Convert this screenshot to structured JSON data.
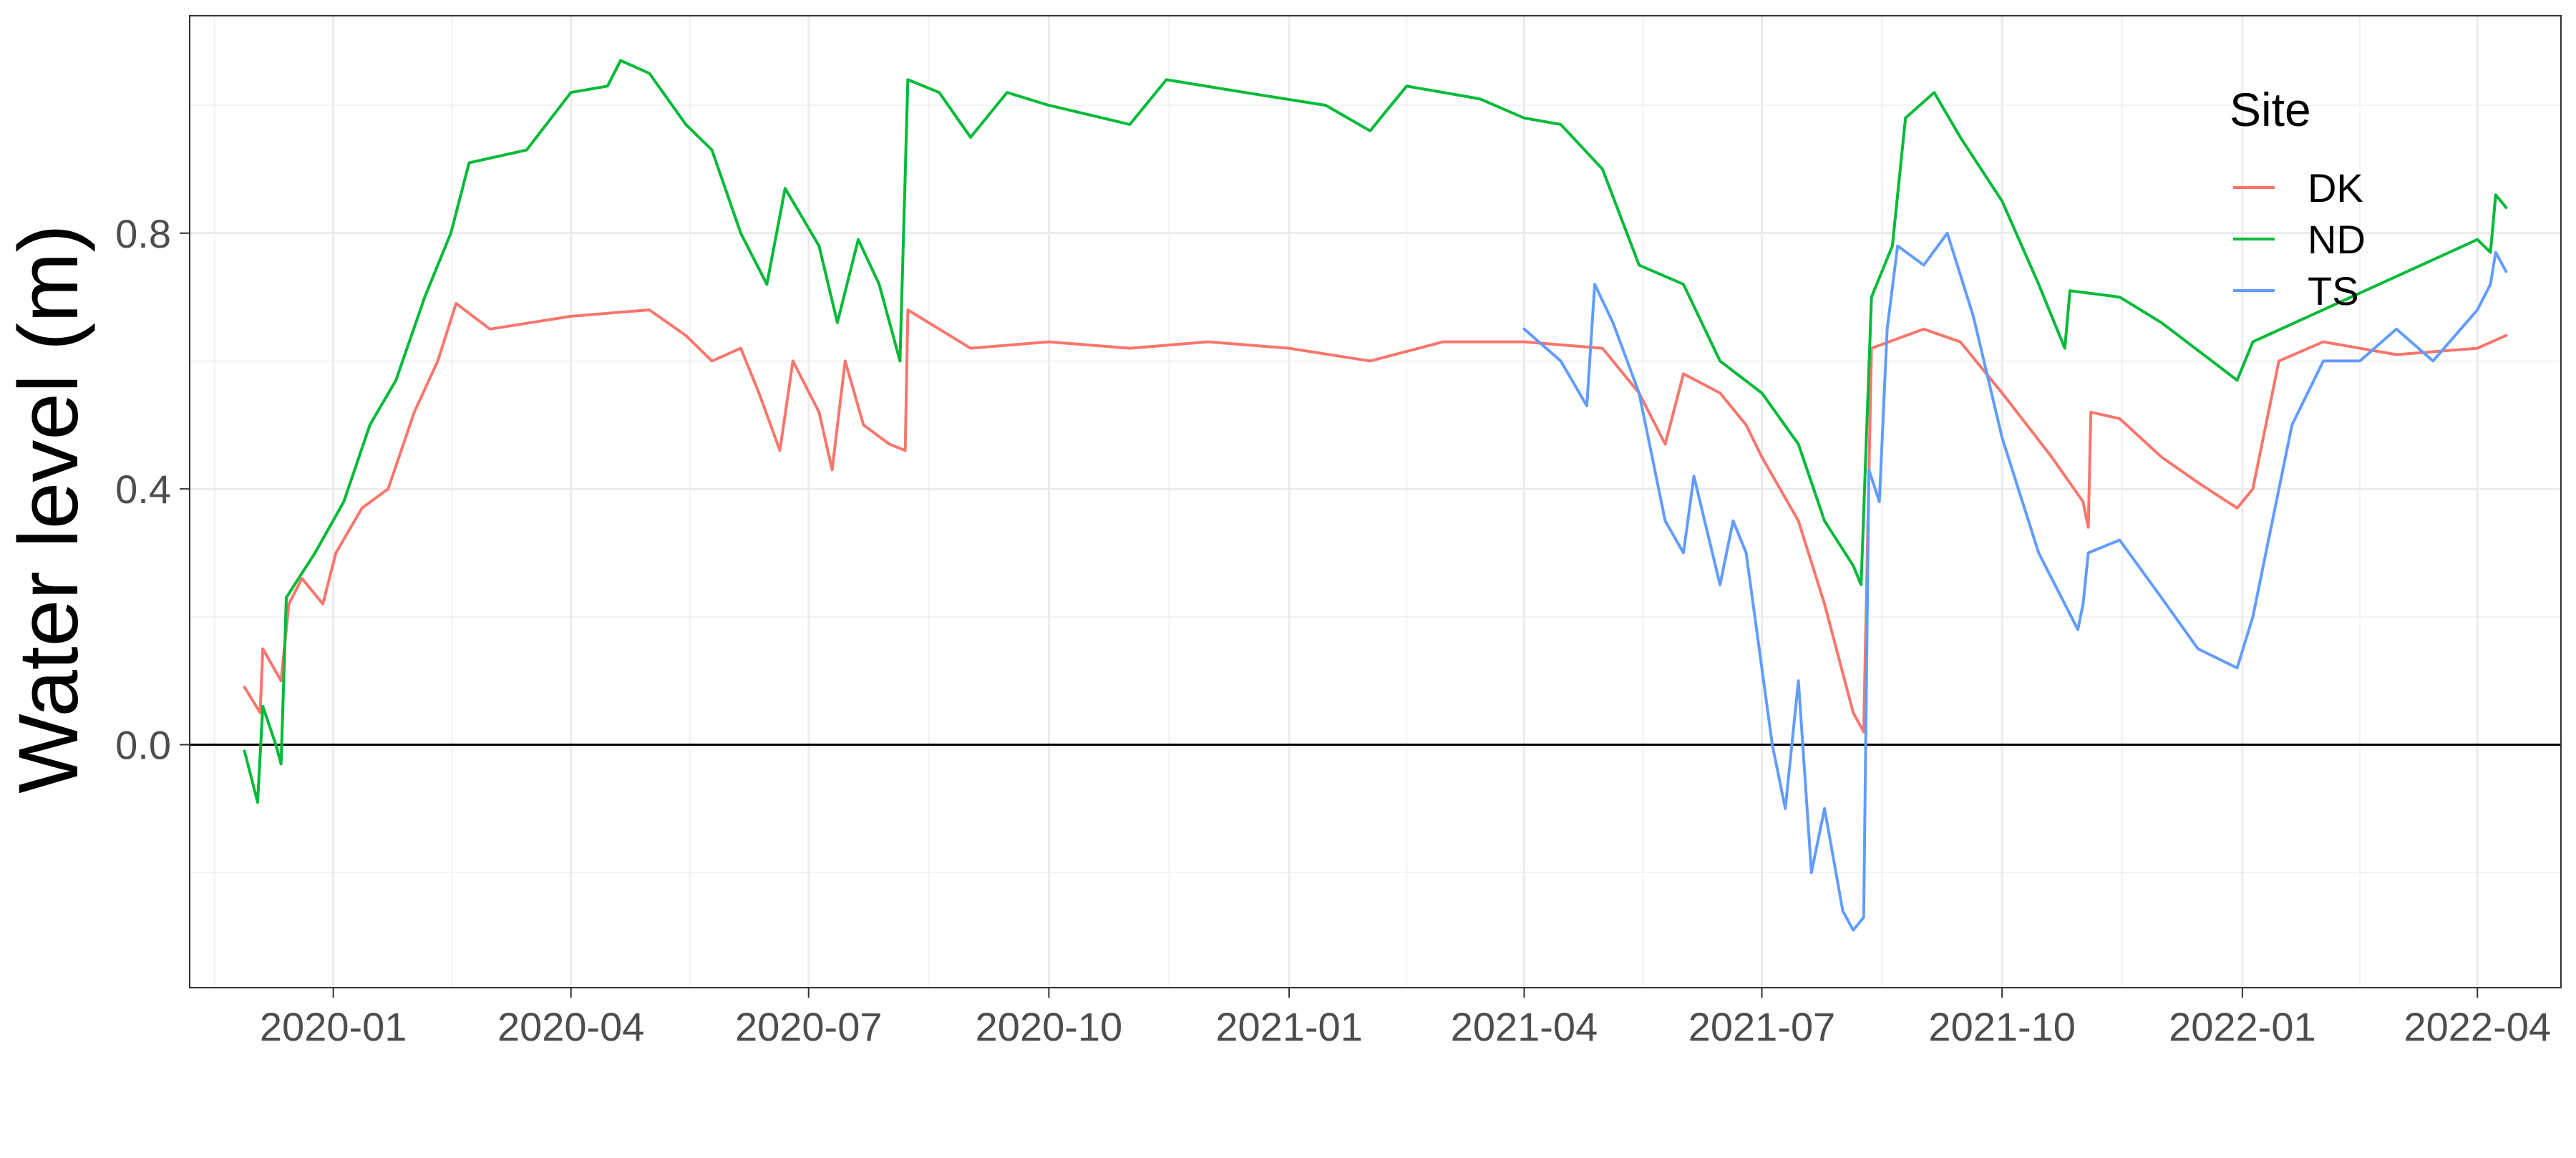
{
  "chart_data": {
    "type": "line",
    "title": "",
    "xlabel": "",
    "ylabel": "Water level (m)",
    "x_type": "date",
    "xlim": [
      "2019-11-07",
      "2022-05-03"
    ],
    "ylim": [
      -0.38,
      1.14
    ],
    "x_ticks": [
      "2020-01-01",
      "2020-04-01",
      "2020-07-01",
      "2020-10-01",
      "2021-01-01",
      "2021-04-01",
      "2021-07-01",
      "2021-10-01",
      "2022-01-01",
      "2022-04-01"
    ],
    "x_tick_labels": [
      "2020-01",
      "2020-04",
      "2020-07",
      "2020-10",
      "2021-01",
      "2021-04",
      "2021-07",
      "2021-10",
      "2022-01",
      "2022-04"
    ],
    "y_ticks": [
      0.0,
      0.4,
      0.8
    ],
    "y_tick_labels": [
      "0.0",
      "0.4",
      "0.8"
    ],
    "grid": true,
    "hline": 0,
    "legend": {
      "title": "Site",
      "position": "top-right"
    },
    "series": [
      {
        "name": "DK",
        "color": "#F8766D",
        "points": [
          [
            "2019-11-28",
            0.09
          ],
          [
            "2019-12-04",
            0.05
          ],
          [
            "2019-12-05",
            0.15
          ],
          [
            "2019-12-12",
            0.1
          ],
          [
            "2019-12-15",
            0.22
          ],
          [
            "2019-12-20",
            0.26
          ],
          [
            "2019-12-28",
            0.22
          ],
          [
            "2020-01-02",
            0.3
          ],
          [
            "2020-01-12",
            0.37
          ],
          [
            "2020-01-22",
            0.4
          ],
          [
            "2020-02-01",
            0.52
          ],
          [
            "2020-02-10",
            0.6
          ],
          [
            "2020-02-17",
            0.69
          ],
          [
            "2020-03-01",
            0.65
          ],
          [
            "2020-04-01",
            0.67
          ],
          [
            "2020-05-01",
            0.68
          ],
          [
            "2020-05-15",
            0.64
          ],
          [
            "2020-05-25",
            0.6
          ],
          [
            "2020-06-05",
            0.62
          ],
          [
            "2020-06-12",
            0.55
          ],
          [
            "2020-06-20",
            0.46
          ],
          [
            "2020-06-25",
            0.6
          ],
          [
            "2020-07-05",
            0.52
          ],
          [
            "2020-07-10",
            0.43
          ],
          [
            "2020-07-15",
            0.6
          ],
          [
            "2020-07-22",
            0.5
          ],
          [
            "2020-08-01",
            0.47
          ],
          [
            "2020-08-07",
            0.46
          ],
          [
            "2020-08-08",
            0.68
          ],
          [
            "2020-09-01",
            0.62
          ],
          [
            "2020-10-01",
            0.63
          ],
          [
            "2020-11-01",
            0.62
          ],
          [
            "2020-12-01",
            0.63
          ],
          [
            "2021-01-01",
            0.62
          ],
          [
            "2021-02-01",
            0.6
          ],
          [
            "2021-03-01",
            0.63
          ],
          [
            "2021-04-01",
            0.63
          ],
          [
            "2021-05-01",
            0.62
          ],
          [
            "2021-05-15",
            0.55
          ],
          [
            "2021-05-25",
            0.47
          ],
          [
            "2021-06-01",
            0.58
          ],
          [
            "2021-06-15",
            0.55
          ],
          [
            "2021-06-25",
            0.5
          ],
          [
            "2021-07-01",
            0.45
          ],
          [
            "2021-07-15",
            0.35
          ],
          [
            "2021-07-25",
            0.22
          ],
          [
            "2021-08-05",
            0.05
          ],
          [
            "2021-08-09",
            0.02
          ],
          [
            "2021-08-12",
            0.62
          ],
          [
            "2021-09-01",
            0.65
          ],
          [
            "2021-09-15",
            0.63
          ],
          [
            "2021-10-01",
            0.55
          ],
          [
            "2021-10-20",
            0.45
          ],
          [
            "2021-11-01",
            0.38
          ],
          [
            "2021-11-03",
            0.34
          ],
          [
            "2021-11-04",
            0.52
          ],
          [
            "2021-11-15",
            0.51
          ],
          [
            "2021-12-01",
            0.45
          ],
          [
            "2021-12-15",
            0.41
          ],
          [
            "2021-12-30",
            0.37
          ],
          [
            "2022-01-05",
            0.4
          ],
          [
            "2022-01-15",
            0.6
          ],
          [
            "2022-02-01",
            0.63
          ],
          [
            "2022-03-01",
            0.61
          ],
          [
            "2022-04-01",
            0.62
          ],
          [
            "2022-04-12",
            0.64
          ]
        ]
      },
      {
        "name": "ND",
        "color": "#00BA38",
        "points": [
          [
            "2019-11-28",
            -0.01
          ],
          [
            "2019-12-03",
            -0.09
          ],
          [
            "2019-12-05",
            0.06
          ],
          [
            "2019-12-10",
            0.0
          ],
          [
            "2019-12-12",
            -0.03
          ],
          [
            "2019-12-14",
            0.23
          ],
          [
            "2019-12-25",
            0.3
          ],
          [
            "2020-01-05",
            0.38
          ],
          [
            "2020-01-15",
            0.5
          ],
          [
            "2020-01-25",
            0.57
          ],
          [
            "2020-02-05",
            0.7
          ],
          [
            "2020-02-15",
            0.8
          ],
          [
            "2020-02-22",
            0.91
          ],
          [
            "2020-03-15",
            0.93
          ],
          [
            "2020-04-01",
            1.02
          ],
          [
            "2020-04-15",
            1.03
          ],
          [
            "2020-04-20",
            1.07
          ],
          [
            "2020-05-01",
            1.05
          ],
          [
            "2020-05-15",
            0.97
          ],
          [
            "2020-05-25",
            0.93
          ],
          [
            "2020-06-05",
            0.8
          ],
          [
            "2020-06-15",
            0.72
          ],
          [
            "2020-06-22",
            0.87
          ],
          [
            "2020-07-05",
            0.78
          ],
          [
            "2020-07-12",
            0.66
          ],
          [
            "2020-07-20",
            0.79
          ],
          [
            "2020-07-28",
            0.72
          ],
          [
            "2020-08-05",
            0.6
          ],
          [
            "2020-08-08",
            1.04
          ],
          [
            "2020-08-20",
            1.02
          ],
          [
            "2020-09-01",
            0.95
          ],
          [
            "2020-09-15",
            1.02
          ],
          [
            "2020-10-01",
            1.0
          ],
          [
            "2020-11-01",
            0.97
          ],
          [
            "2020-11-15",
            1.04
          ],
          [
            "2020-12-15",
            1.02
          ],
          [
            "2021-01-15",
            1.0
          ],
          [
            "2021-02-01",
            0.96
          ],
          [
            "2021-02-15",
            1.03
          ],
          [
            "2021-03-01",
            1.02
          ],
          [
            "2021-03-15",
            1.01
          ],
          [
            "2021-04-01",
            0.98
          ],
          [
            "2021-04-15",
            0.97
          ],
          [
            "2021-05-01",
            0.9
          ],
          [
            "2021-05-15",
            0.75
          ],
          [
            "2021-06-01",
            0.72
          ],
          [
            "2021-06-15",
            0.6
          ],
          [
            "2021-07-01",
            0.55
          ],
          [
            "2021-07-15",
            0.47
          ],
          [
            "2021-07-25",
            0.35
          ],
          [
            "2021-08-05",
            0.28
          ],
          [
            "2021-08-08",
            0.25
          ],
          [
            "2021-08-12",
            0.7
          ],
          [
            "2021-08-20",
            0.78
          ],
          [
            "2021-08-25",
            0.98
          ],
          [
            "2021-09-05",
            1.02
          ],
          [
            "2021-09-15",
            0.95
          ],
          [
            "2021-10-01",
            0.85
          ],
          [
            "2021-10-15",
            0.72
          ],
          [
            "2021-10-25",
            0.62
          ],
          [
            "2021-10-27",
            0.71
          ],
          [
            "2021-11-15",
            0.7
          ],
          [
            "2021-12-01",
            0.66
          ],
          [
            "2021-12-30",
            0.57
          ],
          [
            "2022-01-05",
            0.63
          ],
          [
            "2022-04-01",
            0.79
          ],
          [
            "2022-04-06",
            0.77
          ],
          [
            "2022-04-08",
            0.86
          ],
          [
            "2022-04-12",
            0.84
          ]
        ]
      },
      {
        "name": "TS",
        "color": "#619CFF",
        "points": [
          [
            "2021-04-01",
            0.65
          ],
          [
            "2021-04-15",
            0.6
          ],
          [
            "2021-04-25",
            0.53
          ],
          [
            "2021-04-28",
            0.72
          ],
          [
            "2021-05-05",
            0.66
          ],
          [
            "2021-05-15",
            0.55
          ],
          [
            "2021-05-25",
            0.35
          ],
          [
            "2021-06-01",
            0.3
          ],
          [
            "2021-06-05",
            0.42
          ],
          [
            "2021-06-15",
            0.25
          ],
          [
            "2021-06-20",
            0.35
          ],
          [
            "2021-06-25",
            0.3
          ],
          [
            "2021-07-01",
            0.12
          ],
          [
            "2021-07-05",
            0.0
          ],
          [
            "2021-07-10",
            -0.1
          ],
          [
            "2021-07-15",
            0.1
          ],
          [
            "2021-07-20",
            -0.2
          ],
          [
            "2021-07-25",
            -0.1
          ],
          [
            "2021-08-01",
            -0.26
          ],
          [
            "2021-08-05",
            -0.29
          ],
          [
            "2021-08-09",
            -0.27
          ],
          [
            "2021-08-11",
            0.43
          ],
          [
            "2021-08-15",
            0.38
          ],
          [
            "2021-08-18",
            0.65
          ],
          [
            "2021-08-22",
            0.78
          ],
          [
            "2021-09-01",
            0.75
          ],
          [
            "2021-09-10",
            0.8
          ],
          [
            "2021-09-20",
            0.67
          ],
          [
            "2021-10-01",
            0.48
          ],
          [
            "2021-10-15",
            0.3
          ],
          [
            "2021-10-30",
            0.18
          ],
          [
            "2021-11-01",
            0.22
          ],
          [
            "2021-11-03",
            0.3
          ],
          [
            "2021-11-15",
            0.32
          ],
          [
            "2021-12-01",
            0.23
          ],
          [
            "2021-12-15",
            0.15
          ],
          [
            "2021-12-30",
            0.12
          ],
          [
            "2022-01-05",
            0.2
          ],
          [
            "2022-01-20",
            0.5
          ],
          [
            "2022-02-01",
            0.6
          ],
          [
            "2022-02-15",
            0.6
          ],
          [
            "2022-03-01",
            0.65
          ],
          [
            "2022-03-15",
            0.6
          ],
          [
            "2022-04-01",
            0.68
          ],
          [
            "2022-04-06",
            0.72
          ],
          [
            "2022-04-08",
            0.77
          ],
          [
            "2022-04-12",
            0.74
          ]
        ]
      }
    ]
  }
}
